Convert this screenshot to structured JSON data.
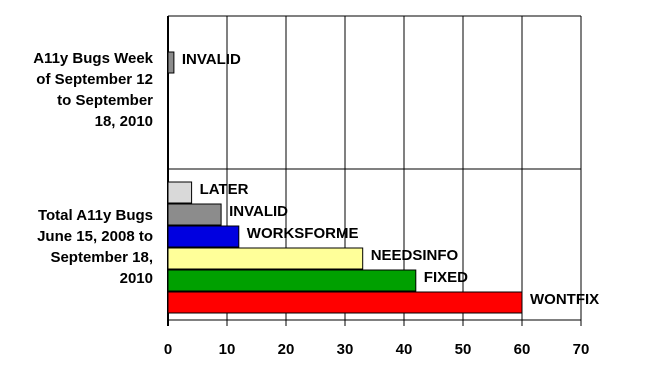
{
  "chart_data": {
    "type": "bar",
    "orientation": "horizontal",
    "groups": [
      {
        "name": [
          "A11y Bugs Week",
          "of September 12",
          "to September",
          "18, 2010"
        ],
        "labels": [
          "INVALID"
        ],
        "values": [
          1
        ],
        "colors": [
          "#8c8c8c"
        ]
      },
      {
        "name": [
          "Total A11y Bugs",
          "June 15, 2008 to",
          "September 18,",
          "2010"
        ],
        "labels": [
          "LATER",
          "INVALID",
          "WORKSFORME",
          "NEEDSINFO",
          "FIXED",
          "WONTFIX"
        ],
        "values": [
          4,
          9,
          12,
          33,
          42,
          60
        ],
        "colors": [
          "#d9d9d9",
          "#8c8c8c",
          "#0000e0",
          "#ffff99",
          "#00a000",
          "#ff0000"
        ]
      }
    ],
    "xlim": [
      0,
      70
    ],
    "xticks": [
      0,
      10,
      20,
      30,
      40,
      50,
      60,
      70
    ],
    "grid": true
  }
}
